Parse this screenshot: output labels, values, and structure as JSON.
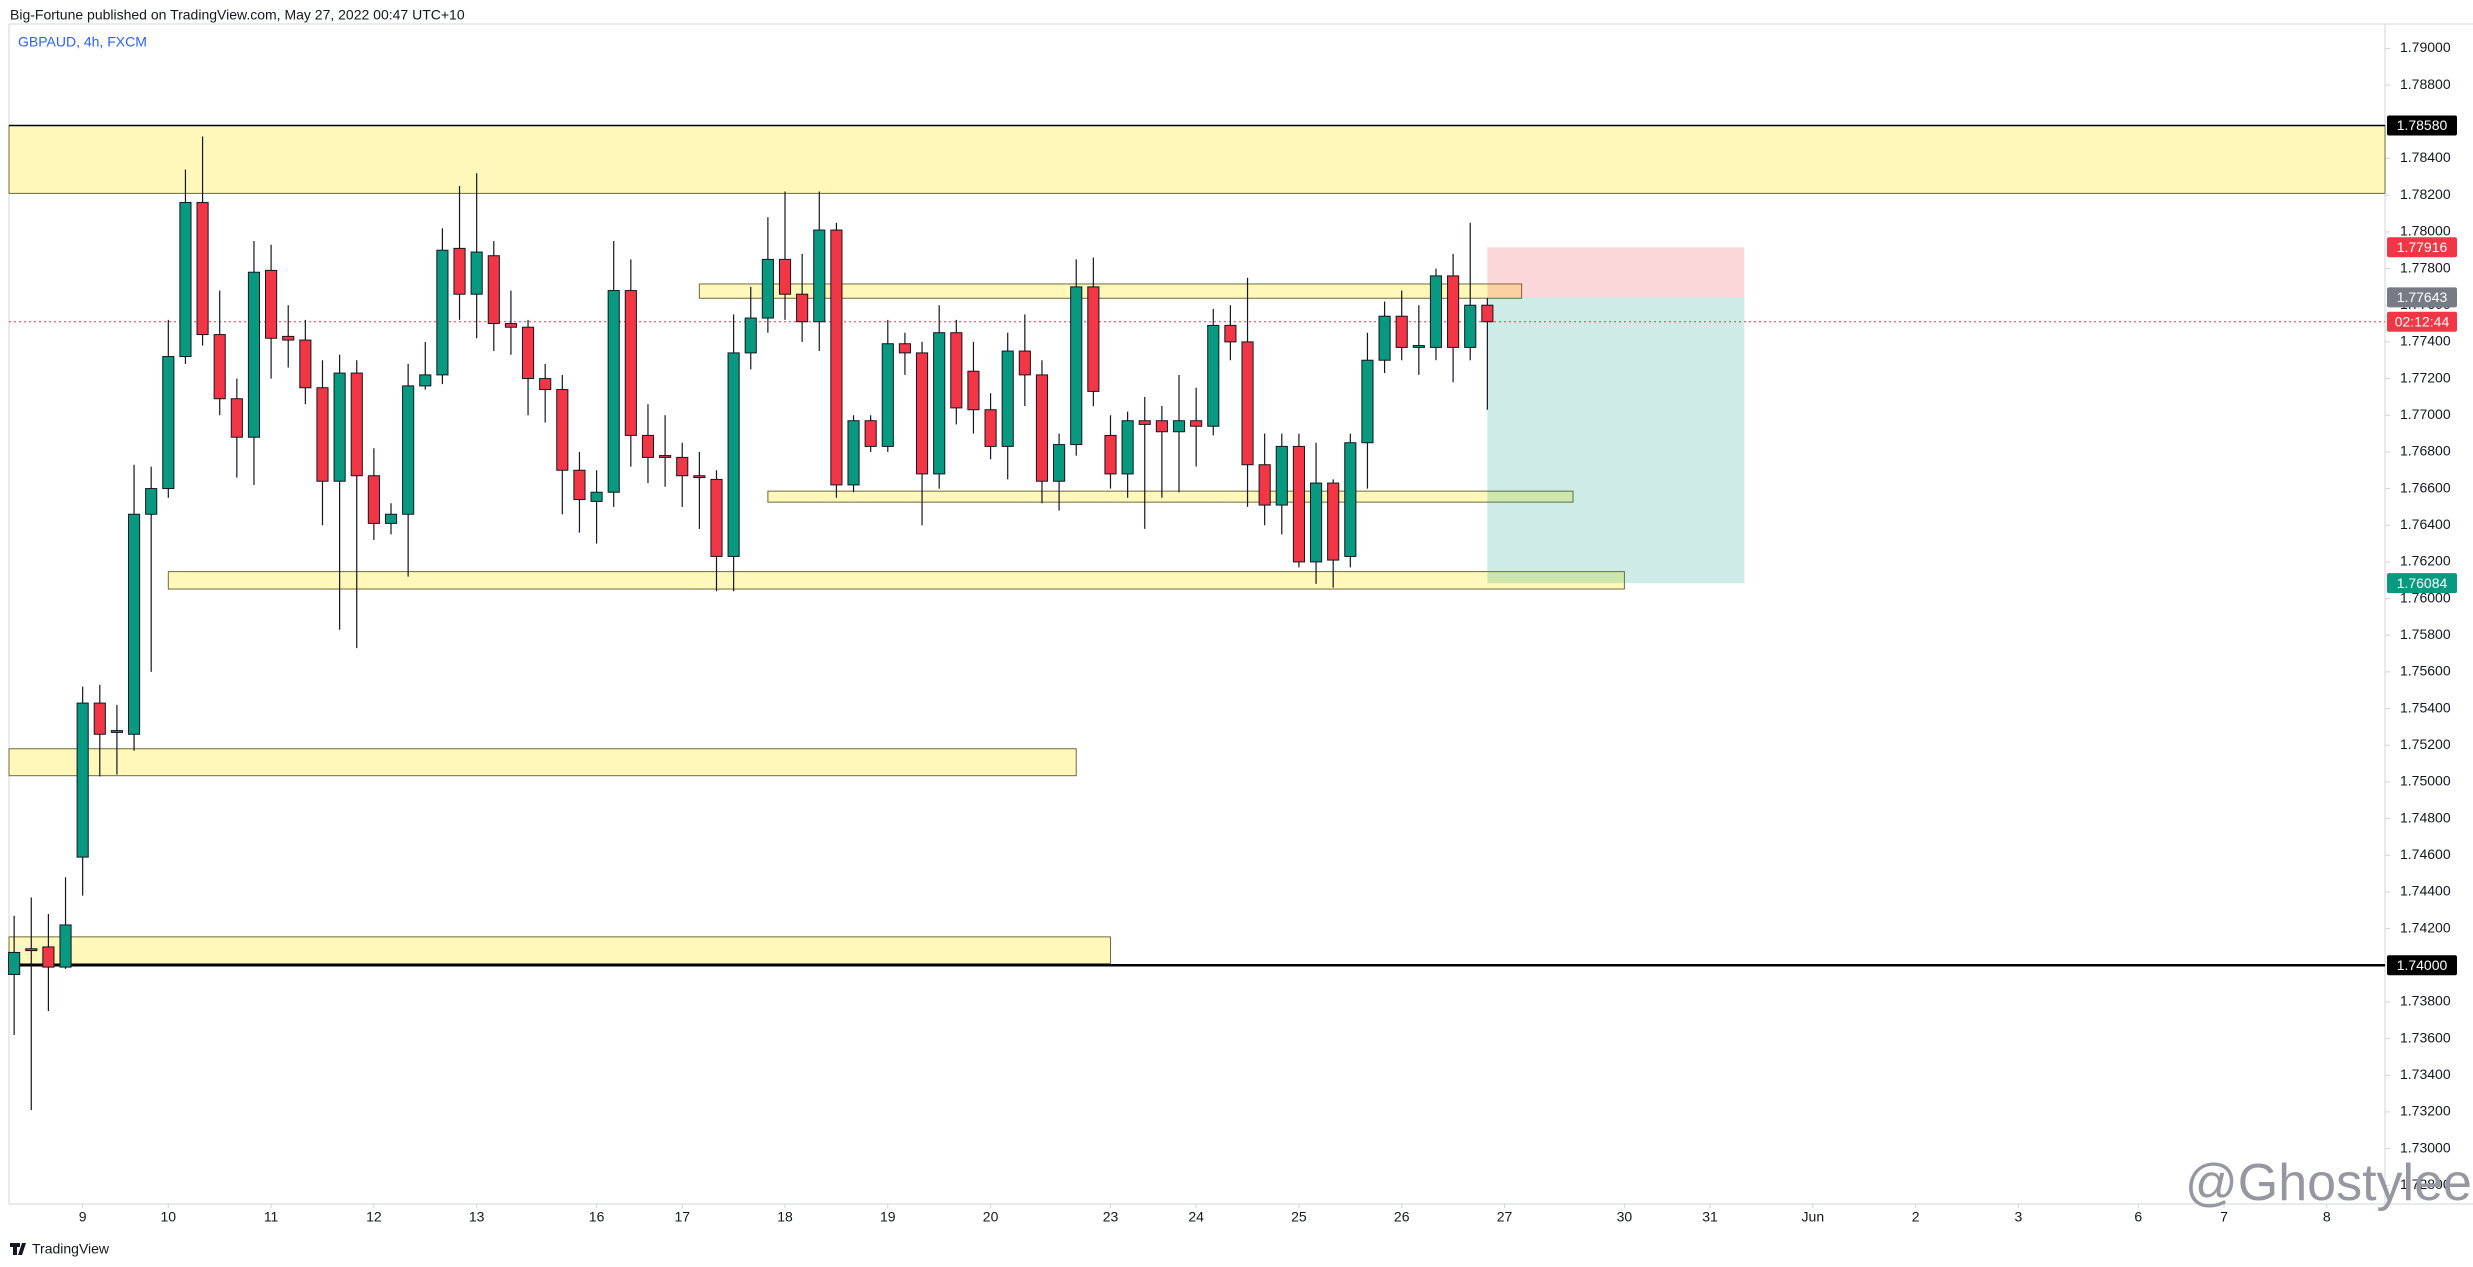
{
  "header": {
    "publisher": "Big-Fortune published on TradingView.com, May 27, 2022 00:47 UTC+10",
    "footer": "TradingView",
    "watermark": "@Ghostylee"
  },
  "chart_data": {
    "type": "candlestick",
    "title": "GBPAUD, 4h, FXCM",
    "up_color": "#089981",
    "down_color": "#f23645",
    "grid": false,
    "open": [
      1.7395,
      1.7409,
      1.741,
      1.7399,
      1.7459,
      1.7543,
      1.7527,
      1.7526,
      1.7646,
      1.766,
      1.7732,
      1.7816,
      1.7744,
      1.7709,
      1.7688,
      1.7779,
      1.7743,
      1.7741,
      1.7715,
      1.7664,
      1.7723,
      1.7667,
      1.7641,
      1.7646,
      1.7716,
      1.7722,
      1.7791,
      1.7766,
      1.7787,
      1.775,
      1.7748,
      1.772,
      1.7714,
      1.767,
      1.7653,
      1.7658,
      1.7768,
      1.7689,
      1.7678,
      1.7677,
      1.7667,
      1.7665,
      1.7623,
      1.7734,
      1.7753,
      1.7785,
      1.7766,
      1.7751,
      1.7801,
      1.7662,
      1.7697,
      1.7683,
      1.7739,
      1.7734,
      1.7668,
      1.7745,
      1.7724,
      1.7703,
      1.7683,
      1.7735,
      1.7722,
      1.7664,
      1.7684,
      1.777,
      1.7689,
      1.7668,
      1.7697,
      1.7697,
      1.7691,
      1.7697,
      1.7694,
      1.7749,
      1.774,
      1.7673,
      1.7651,
      1.7683,
      1.762,
      1.7663,
      1.7623,
      1.7685,
      1.773,
      1.7754,
      1.7737,
      1.7737,
      1.7776,
      1.7737,
      1.776
    ],
    "high": [
      1.7427,
      1.7437,
      1.7428,
      1.7448,
      1.7552,
      1.7553,
      1.7542,
      1.7673,
      1.7672,
      1.7752,
      1.7834,
      1.7852,
      1.7768,
      1.772,
      1.7795,
      1.7793,
      1.776,
      1.7752,
      1.773,
      1.7733,
      1.773,
      1.7682,
      1.7652,
      1.7728,
      1.774,
      1.7802,
      1.7825,
      1.7832,
      1.7795,
      1.7768,
      1.7752,
      1.7728,
      1.7722,
      1.768,
      1.767,
      1.7795,
      1.7785,
      1.7706,
      1.77,
      1.7685,
      1.768,
      1.767,
      1.7755,
      1.777,
      1.7808,
      1.7822,
      1.7788,
      1.7822,
      1.7805,
      1.77,
      1.77,
      1.7752,
      1.7745,
      1.774,
      1.776,
      1.7752,
      1.774,
      1.7712,
      1.7745,
      1.7755,
      1.773,
      1.769,
      1.7785,
      1.7786,
      1.77,
      1.7702,
      1.771,
      1.7705,
      1.7722,
      1.7715,
      1.7758,
      1.776,
      1.7775,
      1.769,
      1.769,
      1.769,
      1.7685,
      1.7665,
      1.769,
      1.7745,
      1.7762,
      1.7768,
      1.776,
      1.778,
      1.7788,
      1.7805,
      1.7764
    ],
    "low": [
      1.7362,
      1.7321,
      1.7375,
      1.7398,
      1.7438,
      1.7503,
      1.7504,
      1.7517,
      1.756,
      1.7655,
      1.7728,
      1.7738,
      1.77,
      1.7666,
      1.7662,
      1.772,
      1.7726,
      1.7706,
      1.764,
      1.7583,
      1.7573,
      1.7632,
      1.7635,
      1.7612,
      1.7714,
      1.7717,
      1.7752,
      1.7742,
      1.7735,
      1.7733,
      1.77,
      1.7696,
      1.7646,
      1.7636,
      1.763,
      1.765,
      1.7672,
      1.7663,
      1.7661,
      1.765,
      1.7638,
      1.7604,
      1.7604,
      1.7725,
      1.7745,
      1.7752,
      1.774,
      1.7735,
      1.7655,
      1.7658,
      1.768,
      1.768,
      1.7722,
      1.764,
      1.766,
      1.7695,
      1.769,
      1.7676,
      1.7665,
      1.7705,
      1.7652,
      1.7648,
      1.7678,
      1.7705,
      1.766,
      1.7655,
      1.7638,
      1.7655,
      1.7658,
      1.7672,
      1.7689,
      1.773,
      1.765,
      1.764,
      1.7635,
      1.7617,
      1.7608,
      1.7606,
      1.7617,
      1.766,
      1.7723,
      1.773,
      1.7722,
      1.773,
      1.7718,
      1.773,
      1.7703
    ],
    "close": [
      1.7407,
      1.7408,
      1.7399,
      1.7422,
      1.7543,
      1.7526,
      1.7528,
      1.7646,
      1.766,
      1.7732,
      1.7816,
      1.7744,
      1.7709,
      1.7688,
      1.7778,
      1.7742,
      1.7741,
      1.7715,
      1.7664,
      1.7723,
      1.7667,
      1.7641,
      1.7646,
      1.7716,
      1.7722,
      1.779,
      1.7766,
      1.7789,
      1.775,
      1.7748,
      1.772,
      1.7714,
      1.767,
      1.7654,
      1.7658,
      1.7768,
      1.7689,
      1.7677,
      1.7677,
      1.7667,
      1.7666,
      1.7623,
      1.7734,
      1.7753,
      1.7785,
      1.7766,
      1.7751,
      1.7801,
      1.7662,
      1.7697,
      1.7683,
      1.7739,
      1.7734,
      1.7668,
      1.7745,
      1.7704,
      1.7703,
      1.7683,
      1.7735,
      1.7722,
      1.7664,
      1.7684,
      1.777,
      1.7713,
      1.7668,
      1.7697,
      1.7695,
      1.7691,
      1.7697,
      1.7694,
      1.7749,
      1.774,
      1.7673,
      1.7651,
      1.7683,
      1.762,
      1.7663,
      1.7621,
      1.7685,
      1.773,
      1.7754,
      1.7737,
      1.7738,
      1.7776,
      1.7737,
      1.776,
      1.7751
    ],
    "xlim": [
      -0.3,
      138.4
    ],
    "xticks": [
      {
        "value": 4,
        "label": "9"
      },
      {
        "value": 9,
        "label": "10"
      },
      {
        "value": 15,
        "label": "11"
      },
      {
        "value": 21,
        "label": "12"
      },
      {
        "value": 27,
        "label": "13"
      },
      {
        "value": 34,
        "label": "16"
      },
      {
        "value": 39,
        "label": "17"
      },
      {
        "value": 45,
        "label": "18"
      },
      {
        "value": 51,
        "label": "19"
      },
      {
        "value": 57,
        "label": "20"
      },
      {
        "value": 64,
        "label": "23"
      },
      {
        "value": 69,
        "label": "24"
      },
      {
        "value": 75,
        "label": "25"
      },
      {
        "value": 81,
        "label": "26"
      },
      {
        "value": 87,
        "label": "27"
      },
      {
        "value": 94,
        "label": "30"
      },
      {
        "value": 99,
        "label": "31"
      },
      {
        "value": 105,
        "label": "Jun"
      },
      {
        "value": 111,
        "label": "2"
      },
      {
        "value": 117,
        "label": "3"
      },
      {
        "value": 124,
        "label": "6"
      },
      {
        "value": 129,
        "label": "7"
      },
      {
        "value": 135,
        "label": "8"
      }
    ],
    "ylim": [
      1.72698,
      1.79112
    ],
    "yticks": [
      {
        "value": 1.79,
        "label": "1.79000"
      },
      {
        "value": 1.788,
        "label": "1.78800"
      },
      {
        "value": 1.786,
        "label": "1.78600"
      },
      {
        "value": 1.784,
        "label": "1.78400"
      },
      {
        "value": 1.782,
        "label": "1.78200"
      },
      {
        "value": 1.78,
        "label": "1.78000"
      },
      {
        "value": 1.778,
        "label": "1.77800"
      },
      {
        "value": 1.776,
        "label": "1.77600"
      },
      {
        "value": 1.774,
        "label": "1.77400"
      },
      {
        "value": 1.772,
        "label": "1.77200"
      },
      {
        "value": 1.77,
        "label": "1.77000"
      },
      {
        "value": 1.768,
        "label": "1.76800"
      },
      {
        "value": 1.766,
        "label": "1.76600"
      },
      {
        "value": 1.764,
        "label": "1.76400"
      },
      {
        "value": 1.762,
        "label": "1.76200"
      },
      {
        "value": 1.76,
        "label": "1.76000"
      },
      {
        "value": 1.758,
        "label": "1.75800"
      },
      {
        "value": 1.756,
        "label": "1.75600"
      },
      {
        "value": 1.754,
        "label": "1.75400"
      },
      {
        "value": 1.752,
        "label": "1.75200"
      },
      {
        "value": 1.75,
        "label": "1.75000"
      },
      {
        "value": 1.748,
        "label": "1.74800"
      },
      {
        "value": 1.746,
        "label": "1.74600"
      },
      {
        "value": 1.744,
        "label": "1.74400"
      },
      {
        "value": 1.742,
        "label": "1.74200"
      },
      {
        "value": 1.74,
        "label": "1.74000"
      },
      {
        "value": 1.738,
        "label": "1.73800"
      },
      {
        "value": 1.736,
        "label": "1.73600"
      },
      {
        "value": 1.734,
        "label": "1.73400"
      },
      {
        "value": 1.732,
        "label": "1.73200"
      },
      {
        "value": 1.73,
        "label": "1.73000"
      },
      {
        "value": 1.728,
        "label": "1.72800"
      }
    ],
    "zones": [
      {
        "top": 1.7858,
        "bottom": 1.7821,
        "x0": -0.3,
        "x1": 138.4
      },
      {
        "top": 1.77716,
        "bottom": 1.77638,
        "x0": 40,
        "x1": 88
      },
      {
        "top": 1.76586,
        "bottom": 1.76526,
        "x0": 44,
        "x1": 91
      },
      {
        "top": 1.76147,
        "bottom": 1.76052,
        "x0": 9,
        "x1": 94
      },
      {
        "top": 1.75181,
        "bottom": 1.75034,
        "x0": -0.3,
        "x1": 62
      },
      {
        "top": 1.74155,
        "bottom": 1.74009,
        "x0": -0.3,
        "x1": 64
      }
    ],
    "zone_color": "#fff59d",
    "levels": [
      {
        "value": 1.7858,
        "label": "1.78580"
      },
      {
        "value": 1.74,
        "label": "1.74000"
      }
    ],
    "position": {
      "stop": {
        "value": 1.77916,
        "label": "1.77916"
      },
      "entry": {
        "value": 1.77643,
        "label": "1.77643"
      },
      "target": {
        "value": 1.76084,
        "label": "1.76084"
      },
      "x0": 86,
      "x1": 101
    },
    "current_price": 1.7751,
    "countdown": "02:12:44"
  }
}
